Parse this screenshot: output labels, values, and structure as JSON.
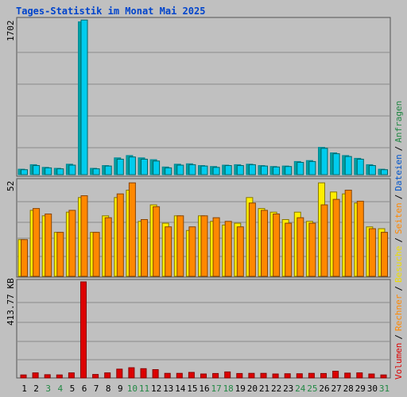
{
  "title": "Tages-Statistik im Monat Mai 2025",
  "colors": {
    "anfragen": "#00ccee",
    "dateien": "#00a0a0",
    "seiten": "#ff8800",
    "besuche": "#ffee00",
    "rechner": "#ff8800",
    "volumen": "#dd0000",
    "weekend_label": "#228844",
    "weekday_label": "#000000",
    "panel_bg": "#c0c0c0",
    "grid": "#888888"
  },
  "legend": {
    "anfragen": "Anfragen",
    "dateien": "Dateien",
    "seiten": "Seiten",
    "besuche": "Besuche",
    "rechner": "Rechner",
    "volumen": "Volumen",
    "separator": "/"
  },
  "chart_data": [
    {
      "type": "bar",
      "panel": "hits",
      "max_label": "1702",
      "ylim": [
        0,
        1702
      ],
      "categories": [
        "1",
        "2",
        "3",
        "4",
        "5",
        "6",
        "7",
        "8",
        "9",
        "10",
        "11",
        "12",
        "13",
        "14",
        "15",
        "16",
        "17",
        "18",
        "19",
        "20",
        "21",
        "22",
        "23",
        "24",
        "25",
        "26",
        "27",
        "28",
        "29",
        "30",
        "31"
      ],
      "weekend": [
        false,
        false,
        true,
        true,
        false,
        false,
        false,
        false,
        false,
        true,
        true,
        false,
        false,
        false,
        false,
        false,
        true,
        true,
        false,
        false,
        false,
        false,
        false,
        true,
        true,
        false,
        false,
        false,
        false,
        false,
        true
      ],
      "series": [
        {
          "name": "Anfragen",
          "values": [
            60,
            110,
            80,
            70,
            115,
            1680,
            70,
            100,
            185,
            210,
            185,
            165,
            85,
            115,
            120,
            100,
            90,
            105,
            110,
            115,
            100,
            90,
            95,
            145,
            155,
            300,
            240,
            210,
            180,
            110,
            60
          ]
        },
        {
          "name": "Dateien",
          "values": [
            55,
            100,
            75,
            65,
            105,
            1700,
            65,
            95,
            170,
            195,
            170,
            150,
            75,
            105,
            110,
            95,
            80,
            100,
            100,
            110,
            95,
            85,
            90,
            135,
            145,
            290,
            230,
            200,
            170,
            100,
            55
          ]
        }
      ]
    },
    {
      "type": "bar",
      "panel": "visits",
      "max_label": "52",
      "ylim": [
        0,
        52
      ],
      "categories": [
        "1",
        "2",
        "3",
        "4",
        "5",
        "6",
        "7",
        "8",
        "9",
        "10",
        "11",
        "12",
        "13",
        "14",
        "15",
        "16",
        "17",
        "18",
        "19",
        "20",
        "21",
        "22",
        "23",
        "24",
        "25",
        "26",
        "27",
        "28",
        "29",
        "30",
        "31"
      ],
      "series": [
        {
          "name": "Besuche",
          "values": [
            20,
            36,
            33,
            24,
            35,
            43,
            24,
            33,
            43,
            47,
            30,
            39,
            29,
            33,
            25,
            33,
            30,
            28,
            29,
            43,
            37,
            35,
            31,
            35,
            30,
            51,
            46,
            45,
            40,
            27,
            26
          ]
        },
        {
          "name": "Seiten",
          "values": [
            20,
            37,
            34,
            24,
            36,
            44,
            24,
            32,
            45,
            51,
            31,
            38,
            27,
            33,
            27,
            33,
            32,
            30,
            27,
            40,
            36,
            34,
            29,
            32,
            29,
            39,
            42,
            47,
            41,
            26,
            24
          ]
        }
      ]
    },
    {
      "type": "bar",
      "panel": "volume",
      "max_label": "413.77 KB",
      "ylim": [
        0,
        413.77
      ],
      "categories": [
        "1",
        "2",
        "3",
        "4",
        "5",
        "6",
        "7",
        "8",
        "9",
        "10",
        "11",
        "12",
        "13",
        "14",
        "15",
        "16",
        "17",
        "18",
        "19",
        "20",
        "21",
        "22",
        "23",
        "24",
        "25",
        "26",
        "27",
        "28",
        "29",
        "30",
        "31"
      ],
      "series": [
        {
          "name": "Volumen",
          "values": [
            13,
            22,
            14,
            13,
            22,
            413.77,
            15,
            22,
            38,
            44,
            40,
            36,
            20,
            20,
            24,
            17,
            19,
            26,
            19,
            20,
            20,
            17,
            18,
            18,
            20,
            19,
            29,
            21,
            22,
            17,
            13
          ]
        }
      ]
    }
  ]
}
